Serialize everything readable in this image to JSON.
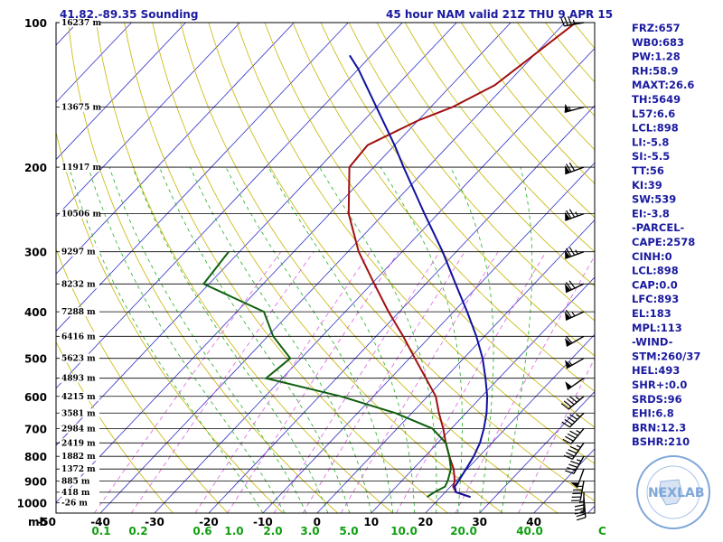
{
  "header": {
    "location": "41.82,-89.35 Sounding",
    "valid": "45 hour NAM valid 21Z THU  9 APR 15"
  },
  "indices": [
    "FRZ:657",
    "WB0:683",
    "PW:1.28",
    "RH:58.9",
    "MAXT:26.6",
    "TH:5649",
    "L57:6.6",
    "LCL:898",
    "LI:-5.8",
    "SI:-5.5",
    "TT:56",
    "KI:39",
    "SW:539",
    "EI:-3.8",
    "-PARCEL-",
    "CAPE:2578",
    "CINH:0",
    "LCL:898",
    "CAP:0.0",
    "LFC:893",
    "EL:183",
    "MPL:113",
    "-WIND-",
    "STM:260/37",
    "HEL:493",
    "SHR+:0.0",
    "SRDS:96",
    "EHI:6.8",
    "BRN:12.3",
    "BSHR:210"
  ],
  "logo": {
    "text": "NEXLAB",
    "ring": "Next Generation Weather Lab  College of DuPage"
  },
  "colors": {
    "temp": "#a01010",
    "dewpoint": "#106010",
    "parcel": "#1010a0",
    "isotherm": "#3030c8",
    "dry_adiabat": "#c8b400",
    "moist_adiabat": "#20b020",
    "mixing_ratio": "#e060e0"
  },
  "chart_data": {
    "type": "line",
    "chart_kind": "Skew-T log-P sounding",
    "y_axis": {
      "label": "mb",
      "ticks": [
        100,
        200,
        300,
        400,
        500,
        600,
        700,
        800,
        900,
        1000
      ],
      "scale": "log"
    },
    "x_axis": {
      "label": "C",
      "ticks": [
        -50,
        -40,
        -30,
        -20,
        -10,
        0,
        10,
        20,
        30,
        40
      ],
      "skewed": true
    },
    "mixing_ratio_labels": [
      "0.1",
      "0.2",
      "0.6",
      "1.0",
      "2.0",
      "3.0",
      "5.0",
      "10.0",
      "20.0",
      "40.0"
    ],
    "height_labels": [
      {
        "p": 100,
        "text": "16237 m"
      },
      {
        "p": 150,
        "text": "13675 m"
      },
      {
        "p": 200,
        "text": "11917 m"
      },
      {
        "p": 250,
        "text": "10506 m"
      },
      {
        "p": 300,
        "text": "9297 m"
      },
      {
        "p": 350,
        "text": "8232 m"
      },
      {
        "p": 400,
        "text": "7288 m"
      },
      {
        "p": 450,
        "text": "6416 m"
      },
      {
        "p": 500,
        "text": "5623 m"
      },
      {
        "p": 550,
        "text": "4893 m"
      },
      {
        "p": 600,
        "text": "4215 m"
      },
      {
        "p": 650,
        "text": "3581 m"
      },
      {
        "p": 700,
        "text": "2984 m"
      },
      {
        "p": 750,
        "text": "2419 m"
      },
      {
        "p": 800,
        "text": "1882 m"
      },
      {
        "p": 850,
        "text": "1372 m"
      },
      {
        "p": 900,
        "text": "885 m"
      },
      {
        "p": 950,
        "text": "418 m"
      },
      {
        "p": 1000,
        "text": "-26 m"
      }
    ],
    "series": [
      {
        "name": "temperature",
        "points": [
          [
            972,
            25.5
          ],
          [
            950,
            22
          ],
          [
            925,
            20.5
          ],
          [
            900,
            19.8
          ],
          [
            850,
            17.5
          ],
          [
            800,
            14.5
          ],
          [
            750,
            11.5
          ],
          [
            700,
            8.5
          ],
          [
            650,
            5
          ],
          [
            600,
            1.5
          ],
          [
            550,
            -3.5
          ],
          [
            500,
            -9
          ],
          [
            450,
            -15
          ],
          [
            400,
            -22
          ],
          [
            350,
            -29.5
          ],
          [
            300,
            -38
          ],
          [
            250,
            -46.5
          ],
          [
            200,
            -54.5
          ],
          [
            180,
            -55
          ],
          [
            160,
            -50
          ],
          [
            150,
            -46
          ],
          [
            135,
            -42
          ],
          [
            100,
            -38
          ]
        ]
      },
      {
        "name": "dewpoint",
        "points": [
          [
            972,
            17.5
          ],
          [
            950,
            18
          ],
          [
            925,
            19
          ],
          [
            900,
            18.5
          ],
          [
            850,
            17
          ],
          [
            800,
            14.5
          ],
          [
            750,
            11.5
          ],
          [
            700,
            6.5
          ],
          [
            650,
            -3
          ],
          [
            600,
            -16
          ],
          [
            550,
            -33
          ],
          [
            500,
            -32
          ],
          [
            450,
            -39
          ],
          [
            400,
            -45
          ],
          [
            350,
            -61
          ],
          [
            300,
            -62
          ]
        ]
      },
      {
        "name": "parcel",
        "points": [
          [
            972,
            25.5
          ],
          [
            950,
            22
          ],
          [
            925,
            20.8
          ],
          [
            900,
            20.5
          ],
          [
            850,
            19.8
          ],
          [
            800,
            19
          ],
          [
            750,
            17.8
          ],
          [
            700,
            16
          ],
          [
            650,
            13.8
          ],
          [
            600,
            11
          ],
          [
            550,
            7.5
          ],
          [
            500,
            3.5
          ],
          [
            450,
            -1.5
          ],
          [
            400,
            -7.5
          ],
          [
            350,
            -14.5
          ],
          [
            300,
            -22.5
          ],
          [
            250,
            -32.5
          ],
          [
            200,
            -44.5
          ],
          [
            180,
            -50
          ],
          [
            150,
            -60
          ],
          [
            125,
            -70
          ],
          [
            117,
            -74
          ]
        ]
      }
    ],
    "wind_barbs": [
      {
        "p": 100,
        "dir": 260,
        "kt": 35
      },
      {
        "p": 150,
        "dir": 255,
        "kt": 55
      },
      {
        "p": 200,
        "dir": 250,
        "kt": 70
      },
      {
        "p": 250,
        "dir": 250,
        "kt": 75
      },
      {
        "p": 300,
        "dir": 250,
        "kt": 75
      },
      {
        "p": 350,
        "dir": 245,
        "kt": 70
      },
      {
        "p": 400,
        "dir": 245,
        "kt": 65
      },
      {
        "p": 450,
        "dir": 240,
        "kt": 60
      },
      {
        "p": 500,
        "dir": 240,
        "kt": 55
      },
      {
        "p": 550,
        "dir": 235,
        "kt": 50
      },
      {
        "p": 600,
        "dir": 230,
        "kt": 45
      },
      {
        "p": 650,
        "dir": 225,
        "kt": 45
      },
      {
        "p": 700,
        "dir": 220,
        "kt": 45
      },
      {
        "p": 750,
        "dir": 215,
        "kt": 45
      },
      {
        "p": 800,
        "dir": 210,
        "kt": 45
      },
      {
        "p": 850,
        "dir": 200,
        "kt": 50
      },
      {
        "p": 900,
        "dir": 190,
        "kt": 45
      },
      {
        "p": 950,
        "dir": 180,
        "kt": 35
      },
      {
        "p": 975,
        "dir": 175,
        "kt": 25
      }
    ]
  }
}
